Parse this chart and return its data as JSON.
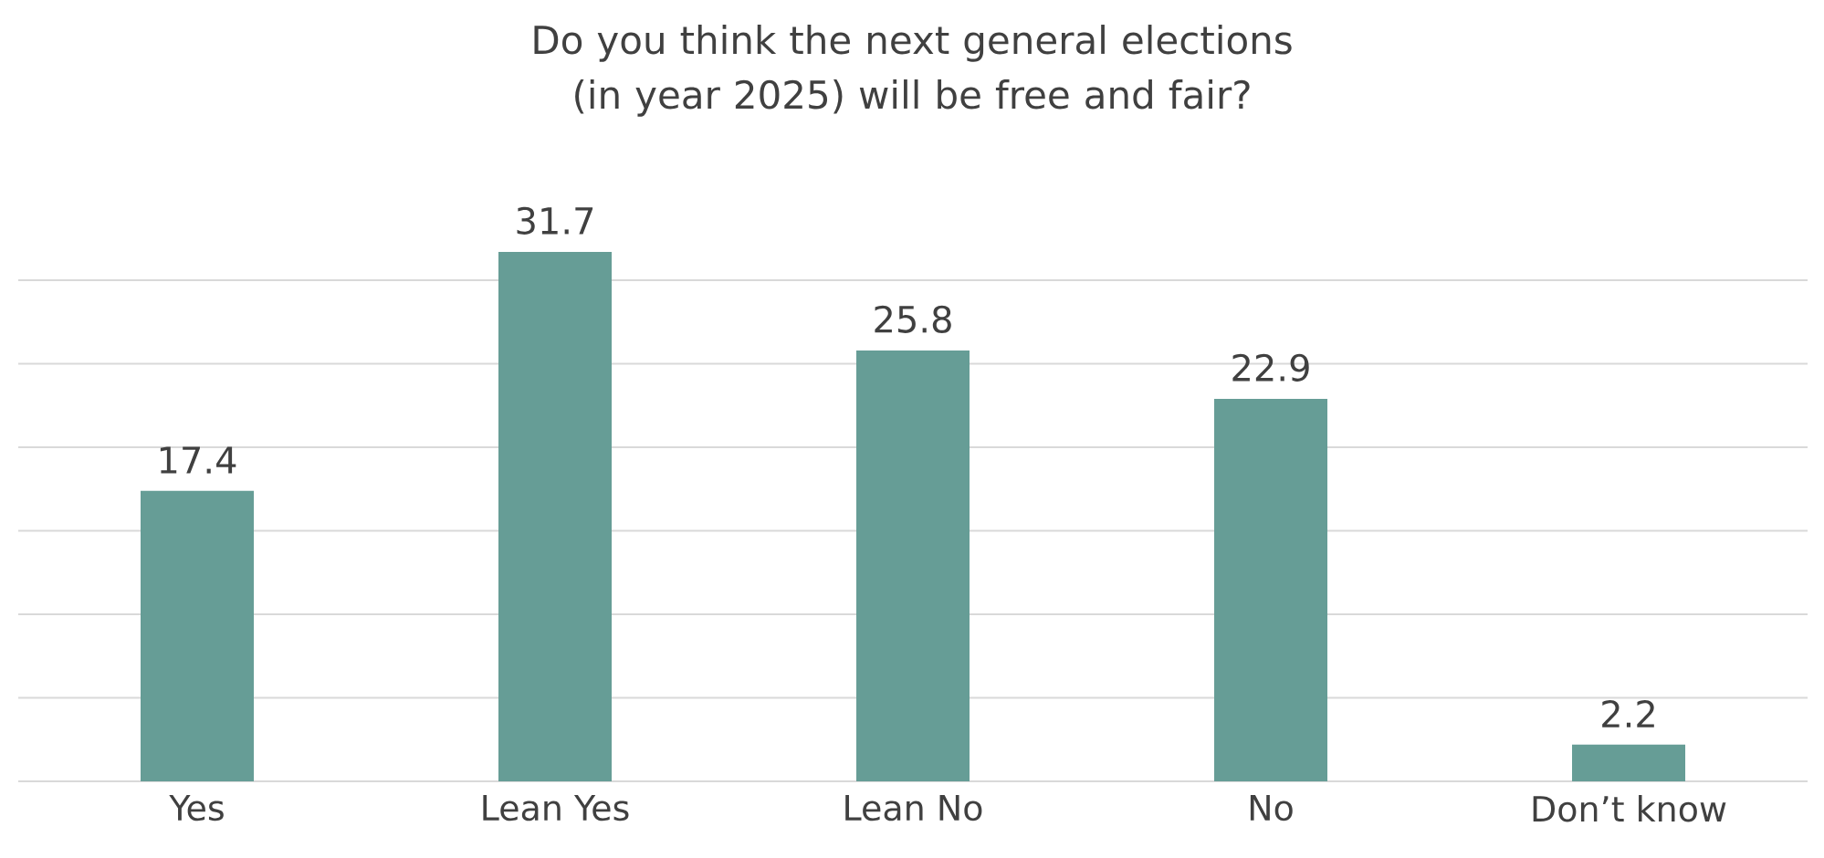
{
  "chart_data": {
    "type": "bar",
    "title": "Do you think the next general elections (in year 2025) will be free and fair?",
    "categories": [
      "Yes",
      "Lean Yes",
      "Lean No",
      "No",
      "Don’t know"
    ],
    "values": [
      17.4,
      31.7,
      25.8,
      22.9,
      2.2
    ],
    "color": "#669d96",
    "tick_labels": "x",
    "grid": "y",
    "data_labels": true
  }
}
